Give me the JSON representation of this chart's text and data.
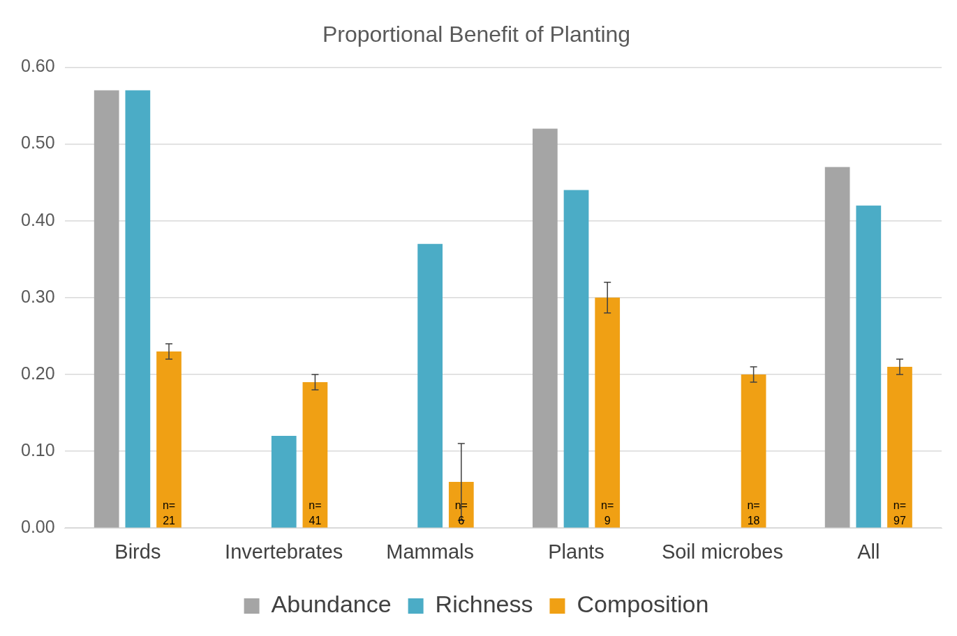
{
  "chart_data": {
    "type": "bar",
    "title": "Proportional Benefit of Planting",
    "categories": [
      "Birds",
      "Invertebrates",
      "Mammals",
      "Plants",
      "Soil microbes",
      "All"
    ],
    "series": [
      {
        "name": "Abundance",
        "color": "#a5a5a5",
        "values": [
          0.57,
          null,
          null,
          0.52,
          null,
          0.47
        ]
      },
      {
        "name": "Richness",
        "color": "#4bacc6",
        "values": [
          0.57,
          0.12,
          0.37,
          0.44,
          null,
          0.42
        ]
      },
      {
        "name": "Composition",
        "color": "#f0a014",
        "values": [
          0.23,
          0.19,
          0.06,
          0.3,
          0.2,
          0.21
        ],
        "errors": [
          0.01,
          0.01,
          0.05,
          0.02,
          0.01,
          0.01
        ]
      }
    ],
    "ylim": [
      0,
      0.6
    ],
    "yticks": [
      {
        "value": 0,
        "label": "0.00"
      },
      {
        "value": 0.1,
        "label": "0.10"
      },
      {
        "value": 0.2,
        "label": "0.20"
      },
      {
        "value": 0.3,
        "label": "0.30"
      },
      {
        "value": 0.4,
        "label": "0.40"
      },
      {
        "value": 0.5,
        "label": "0.50"
      },
      {
        "value": 0.6,
        "label": "0.60"
      }
    ],
    "grid": "y",
    "legend": "bottom",
    "annotations": [
      "n=\n21",
      "n=\n41",
      "n=\n6",
      "n=\n9",
      "n=\n18",
      "n=\n97"
    ]
  }
}
